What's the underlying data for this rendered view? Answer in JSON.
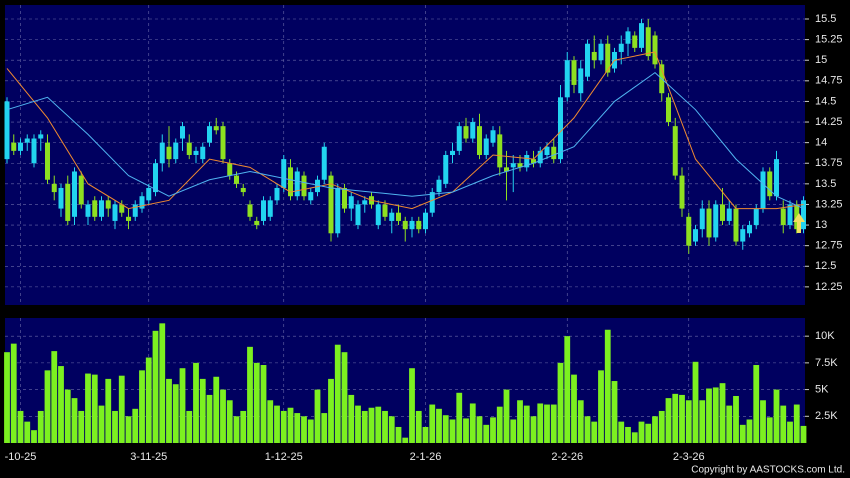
{
  "chart_data": {
    "type": "candlestick",
    "copyright": "Copyright by AASTOCKS.com Ltd.",
    "ylim": [
      12.03,
      15.67
    ],
    "yticks": [
      12.25,
      12.5,
      12.75,
      13,
      13.25,
      13.5,
      13.75,
      14,
      14.25,
      14.5,
      14.75,
      15,
      15.25,
      15.5
    ],
    "grid": true,
    "up_color": "#22d4f0",
    "down_color": "#8ee020",
    "xticks": [
      {
        "value": 2,
        "label": "-10-25"
      },
      {
        "value": 21,
        "label": "3-11-25"
      },
      {
        "value": 41,
        "label": "1-12-25"
      },
      {
        "value": 62,
        "label": "2-1-26"
      },
      {
        "value": 83,
        "label": "2-2-26"
      },
      {
        "value": 101,
        "label": "2-3-26"
      }
    ],
    "candles": [
      [
        13.8,
        14.55,
        13.75,
        14.5
      ],
      [
        14.0,
        14.1,
        13.85,
        13.9
      ],
      [
        13.9,
        14.05,
        13.85,
        14.0
      ],
      [
        14.0,
        14.1,
        13.9,
        14.05
      ],
      [
        13.75,
        14.1,
        13.7,
        14.05
      ],
      [
        14.05,
        14.15,
        13.9,
        14.1
      ],
      [
        14.0,
        14.1,
        13.5,
        13.55
      ],
      [
        13.5,
        13.6,
        13.3,
        13.4
      ],
      [
        13.2,
        13.5,
        13.1,
        13.45
      ],
      [
        13.5,
        13.6,
        13.0,
        13.05
      ],
      [
        13.1,
        13.7,
        13.0,
        13.65
      ],
      [
        13.6,
        13.65,
        13.2,
        13.25
      ],
      [
        13.1,
        13.3,
        13.0,
        13.25
      ],
      [
        13.3,
        13.35,
        13.05,
        13.1
      ],
      [
        13.1,
        13.35,
        13.05,
        13.3
      ],
      [
        13.3,
        13.35,
        13.1,
        13.2
      ],
      [
        13.05,
        13.3,
        12.95,
        13.25
      ],
      [
        13.25,
        13.3,
        13.1,
        13.15
      ],
      [
        13.1,
        13.2,
        12.95,
        13.05
      ],
      [
        13.1,
        13.3,
        13.05,
        13.25
      ],
      [
        13.2,
        13.4,
        13.15,
        13.35
      ],
      [
        13.3,
        13.5,
        13.25,
        13.45
      ],
      [
        13.4,
        13.8,
        13.35,
        13.75
      ],
      [
        13.75,
        14.1,
        13.65,
        14.0
      ],
      [
        13.95,
        14.2,
        13.7,
        13.8
      ],
      [
        13.8,
        14.05,
        13.75,
        14.0
      ],
      [
        14.05,
        14.25,
        13.9,
        14.2
      ],
      [
        14.0,
        14.1,
        13.8,
        13.85
      ],
      [
        13.85,
        13.95,
        13.75,
        13.9
      ],
      [
        13.8,
        14.0,
        13.75,
        13.95
      ],
      [
        14.0,
        14.25,
        13.95,
        14.2
      ],
      [
        14.2,
        14.3,
        14.1,
        14.15
      ],
      [
        14.2,
        14.25,
        13.75,
        13.8
      ],
      [
        13.75,
        13.8,
        13.55,
        13.6
      ],
      [
        13.6,
        13.65,
        13.45,
        13.5
      ],
      [
        13.45,
        13.5,
        13.35,
        13.4
      ],
      [
        13.25,
        13.3,
        13.05,
        13.1
      ],
      [
        13.05,
        13.1,
        12.95,
        13.0
      ],
      [
        13.05,
        13.35,
        13.0,
        13.3
      ],
      [
        13.1,
        13.35,
        13.05,
        13.3
      ],
      [
        13.3,
        13.5,
        13.25,
        13.45
      ],
      [
        13.45,
        13.85,
        13.4,
        13.8
      ],
      [
        13.7,
        13.8,
        13.3,
        13.35
      ],
      [
        13.35,
        13.7,
        13.3,
        13.65
      ],
      [
        13.6,
        13.65,
        13.3,
        13.35
      ],
      [
        13.3,
        13.45,
        13.25,
        13.4
      ],
      [
        13.4,
        13.6,
        13.35,
        13.55
      ],
      [
        13.55,
        14.0,
        13.5,
        13.95
      ],
      [
        13.6,
        13.65,
        12.8,
        12.9
      ],
      [
        12.9,
        13.5,
        12.85,
        13.45
      ],
      [
        13.45,
        13.5,
        13.15,
        13.2
      ],
      [
        13.2,
        13.4,
        13.05,
        13.35
      ],
      [
        13.0,
        13.3,
        12.95,
        13.25
      ],
      [
        13.25,
        13.35,
        13.15,
        13.3
      ],
      [
        13.35,
        13.4,
        13.2,
        13.25
      ],
      [
        13.0,
        13.3,
        12.95,
        13.25
      ],
      [
        13.25,
        13.3,
        13.05,
        13.1
      ],
      [
        13.05,
        13.2,
        12.9,
        13.15
      ],
      [
        13.15,
        13.25,
        13.0,
        13.05
      ],
      [
        13.05,
        13.1,
        12.8,
        12.95
      ],
      [
        12.95,
        13.1,
        12.85,
        13.05
      ],
      [
        13.05,
        13.1,
        12.9,
        12.95
      ],
      [
        12.95,
        13.2,
        12.9,
        13.15
      ],
      [
        13.15,
        13.45,
        13.1,
        13.4
      ],
      [
        13.4,
        13.6,
        13.35,
        13.55
      ],
      [
        13.5,
        13.9,
        13.45,
        13.85
      ],
      [
        13.85,
        14.0,
        13.75,
        13.9
      ],
      [
        13.9,
        14.25,
        13.85,
        14.2
      ],
      [
        14.2,
        14.3,
        14.0,
        14.05
      ],
      [
        14.05,
        14.3,
        14.0,
        14.25
      ],
      [
        14.2,
        14.35,
        13.8,
        13.85
      ],
      [
        13.85,
        14.1,
        13.8,
        14.05
      ],
      [
        14.0,
        14.2,
        13.95,
        14.15
      ],
      [
        14.1,
        14.2,
        13.6,
        13.7
      ],
      [
        13.7,
        13.9,
        13.3,
        13.65
      ],
      [
        13.7,
        13.85,
        13.4,
        13.75
      ],
      [
        13.75,
        13.85,
        13.65,
        13.7
      ],
      [
        13.7,
        13.9,
        13.65,
        13.85
      ],
      [
        13.8,
        13.9,
        13.7,
        13.75
      ],
      [
        13.75,
        13.95,
        13.7,
        13.9
      ],
      [
        13.85,
        14.0,
        13.8,
        13.95
      ],
      [
        13.95,
        14.05,
        13.75,
        13.8
      ],
      [
        13.8,
        14.7,
        13.75,
        14.55
      ],
      [
        14.55,
        15.1,
        14.5,
        15.0
      ],
      [
        15.0,
        15.05,
        14.6,
        14.7
      ],
      [
        14.6,
        15.0,
        14.5,
        14.9
      ],
      [
        14.8,
        15.25,
        14.75,
        15.2
      ],
      [
        15.1,
        15.3,
        14.9,
        15.0
      ],
      [
        15.0,
        15.25,
        14.95,
        15.2
      ],
      [
        15.2,
        15.3,
        14.8,
        14.85
      ],
      [
        14.9,
        15.15,
        14.85,
        15.1
      ],
      [
        15.1,
        15.3,
        14.95,
        15.2
      ],
      [
        15.2,
        15.4,
        15.05,
        15.35
      ],
      [
        15.3,
        15.35,
        15.1,
        15.15
      ],
      [
        15.15,
        15.5,
        15.1,
        15.45
      ],
      [
        15.4,
        15.5,
        15.0,
        15.05
      ],
      [
        15.3,
        15.35,
        14.9,
        14.95
      ],
      [
        14.95,
        15.0,
        14.5,
        14.6
      ],
      [
        14.55,
        14.6,
        14.2,
        14.25
      ],
      [
        14.2,
        14.3,
        13.55,
        13.6
      ],
      [
        13.6,
        13.7,
        13.1,
        13.2
      ],
      [
        13.1,
        13.15,
        12.65,
        12.75
      ],
      [
        12.8,
        13.0,
        12.75,
        12.95
      ],
      [
        12.95,
        13.3,
        12.85,
        13.2
      ],
      [
        13.2,
        13.3,
        12.75,
        12.85
      ],
      [
        12.85,
        13.3,
        12.8,
        13.25
      ],
      [
        13.25,
        13.45,
        13.0,
        13.05
      ],
      [
        13.05,
        13.3,
        13.0,
        13.2
      ],
      [
        13.2,
        13.25,
        12.75,
        12.8
      ],
      [
        12.8,
        13.0,
        12.7,
        12.95
      ],
      [
        12.9,
        13.05,
        12.85,
        13.0
      ],
      [
        13.0,
        13.25,
        12.95,
        13.2
      ],
      [
        13.2,
        13.7,
        13.15,
        13.65
      ],
      [
        13.65,
        13.7,
        13.3,
        13.35
      ],
      [
        13.35,
        13.9,
        13.3,
        13.8
      ],
      [
        13.2,
        13.3,
        12.9,
        13.0
      ],
      [
        13.0,
        13.3,
        12.95,
        13.25
      ],
      [
        13.25,
        13.3,
        12.9,
        12.95
      ],
      [
        12.95,
        13.35,
        12.9,
        13.3
      ]
    ],
    "moving_averages": [
      {
        "color": "#f08a30",
        "x": [
          0,
          6,
          12,
          18,
          24,
          30,
          36,
          42,
          48,
          54,
          60,
          66,
          72,
          78,
          84,
          90,
          96,
          102,
          108,
          114,
          118
        ],
        "values": [
          14.9,
          14.3,
          13.5,
          13.2,
          13.3,
          13.8,
          13.7,
          13.4,
          13.5,
          13.3,
          13.2,
          13.4,
          13.85,
          13.8,
          14.3,
          15.0,
          15.1,
          13.8,
          13.2,
          13.2,
          13.25
        ]
      },
      {
        "color": "#50b4f0",
        "x": [
          0,
          6,
          12,
          18,
          24,
          30,
          36,
          42,
          48,
          54,
          60,
          66,
          72,
          78,
          84,
          90,
          96,
          102,
          108,
          114,
          118
        ],
        "values": [
          14.4,
          14.55,
          14.1,
          13.6,
          13.35,
          13.55,
          13.65,
          13.55,
          13.45,
          13.4,
          13.35,
          13.4,
          13.6,
          13.75,
          13.95,
          14.5,
          14.85,
          14.4,
          13.8,
          13.35,
          13.2
        ]
      }
    ],
    "volume": {
      "color": "#7cf020",
      "ylim": [
        0,
        11.7
      ],
      "yticks": [
        {
          "value": 2.5,
          "label": "2.5K"
        },
        {
          "value": 5,
          "label": "5K"
        },
        {
          "value": 7.5,
          "label": "7.5K"
        },
        {
          "value": 10,
          "label": "10K"
        }
      ],
      "values": [
        8.5,
        9.3,
        3.0,
        2.0,
        1.2,
        3.0,
        6.8,
        8.6,
        7.2,
        5.0,
        4.2,
        3.0,
        6.5,
        6.4,
        3.5,
        6.0,
        3.0,
        6.3,
        2.5,
        3.2,
        6.8,
        8.0,
        10.5,
        11.2,
        6.0,
        5.5,
        7.0,
        3.0,
        7.5,
        6.0,
        4.5,
        6.2,
        5.0,
        4.0,
        2.5,
        3.0,
        9.0,
        7.5,
        7.3,
        4.0,
        3.5,
        3.0,
        3.3,
        2.8,
        2.5,
        2.2,
        5.0,
        2.8,
        6.0,
        9.2,
        8.5,
        4.5,
        3.5,
        3.0,
        3.3,
        3.4,
        3.0,
        2.5,
        1.5,
        0.5,
        7.0,
        3.0,
        1.5,
        3.6,
        3.2,
        2.6,
        2.2,
        4.7,
        2.3,
        3.7,
        2.5,
        1.7,
        2.4,
        3.4,
        5.0,
        2.2,
        4.0,
        3.5,
        2.5,
        3.7,
        3.6,
        3.6,
        7.5,
        10.0,
        6.4,
        4.0,
        2.5,
        2.0,
        6.8,
        10.6,
        5.8,
        2.0,
        1.5,
        1.0,
        2.0,
        1.8,
        2.5,
        3.0,
        4.2,
        4.6,
        4.5,
        4.0,
        7.6,
        4.0,
        5.1,
        5.2,
        5.6,
        3.5,
        4.4,
        1.7,
        2.2,
        7.3,
        4.0,
        2.4,
        5.0,
        3.5,
        2.0,
        3.6,
        1.6
      ]
    }
  }
}
